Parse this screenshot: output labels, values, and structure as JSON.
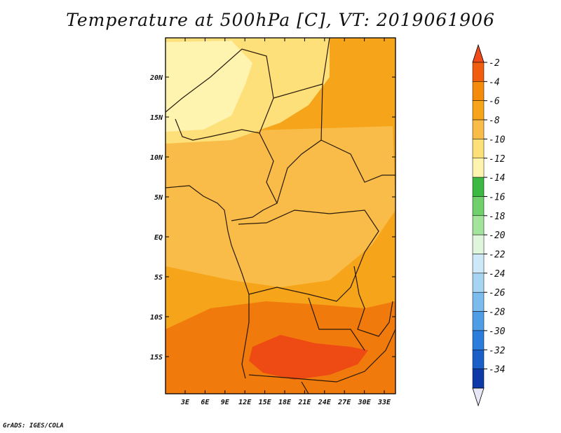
{
  "title": "Temperature at 500hPa [C], VT: 2019061906",
  "footer": "GrADS: IGES/COLA",
  "colors": {
    "frame": "#000000",
    "border": "#2a1a0a",
    "t_m12_m10": "#fff3b0",
    "t_m10_m8": "#fde07a",
    "t_m8_m6": "#f9bc48",
    "t_m6_m4": "#f6a51a",
    "t_m4_m2": "#f17a0c",
    "t_m2_0": "#ee4a14"
  },
  "map": {
    "lon_labels": [
      "3E",
      "6E",
      "9E",
      "12E",
      "15E",
      "18E",
      "21E",
      "24E",
      "27E",
      "30E",
      "33E"
    ],
    "lat_labels": [
      "20N",
      "15N",
      "10N",
      "5N",
      "EQ",
      "5S",
      "10S",
      "15S"
    ]
  },
  "colorbar": {
    "labels": [
      "-2",
      "-4",
      "-6",
      "-8",
      "-10",
      "-12",
      "-14",
      "-16",
      "-18",
      "-20",
      "-22",
      "-24",
      "-26",
      "-28",
      "-30",
      "-32",
      "-34"
    ],
    "top_triangle": "#f04a1a",
    "bottom_triangle": "#e6e6f5",
    "colors": [
      "#f15d0f",
      "#f48b0a",
      "#f6a51a",
      "#f9bc48",
      "#fde07a",
      "#fff3b0",
      "#3cb843",
      "#6fd06c",
      "#a2e49b",
      "#dff6dc",
      "#cde8f6",
      "#a6d4f3",
      "#7cbbee",
      "#4f9de6",
      "#2a7ddb",
      "#1a5fc8",
      "#0e3aa8",
      "#0a1f78"
    ]
  }
}
